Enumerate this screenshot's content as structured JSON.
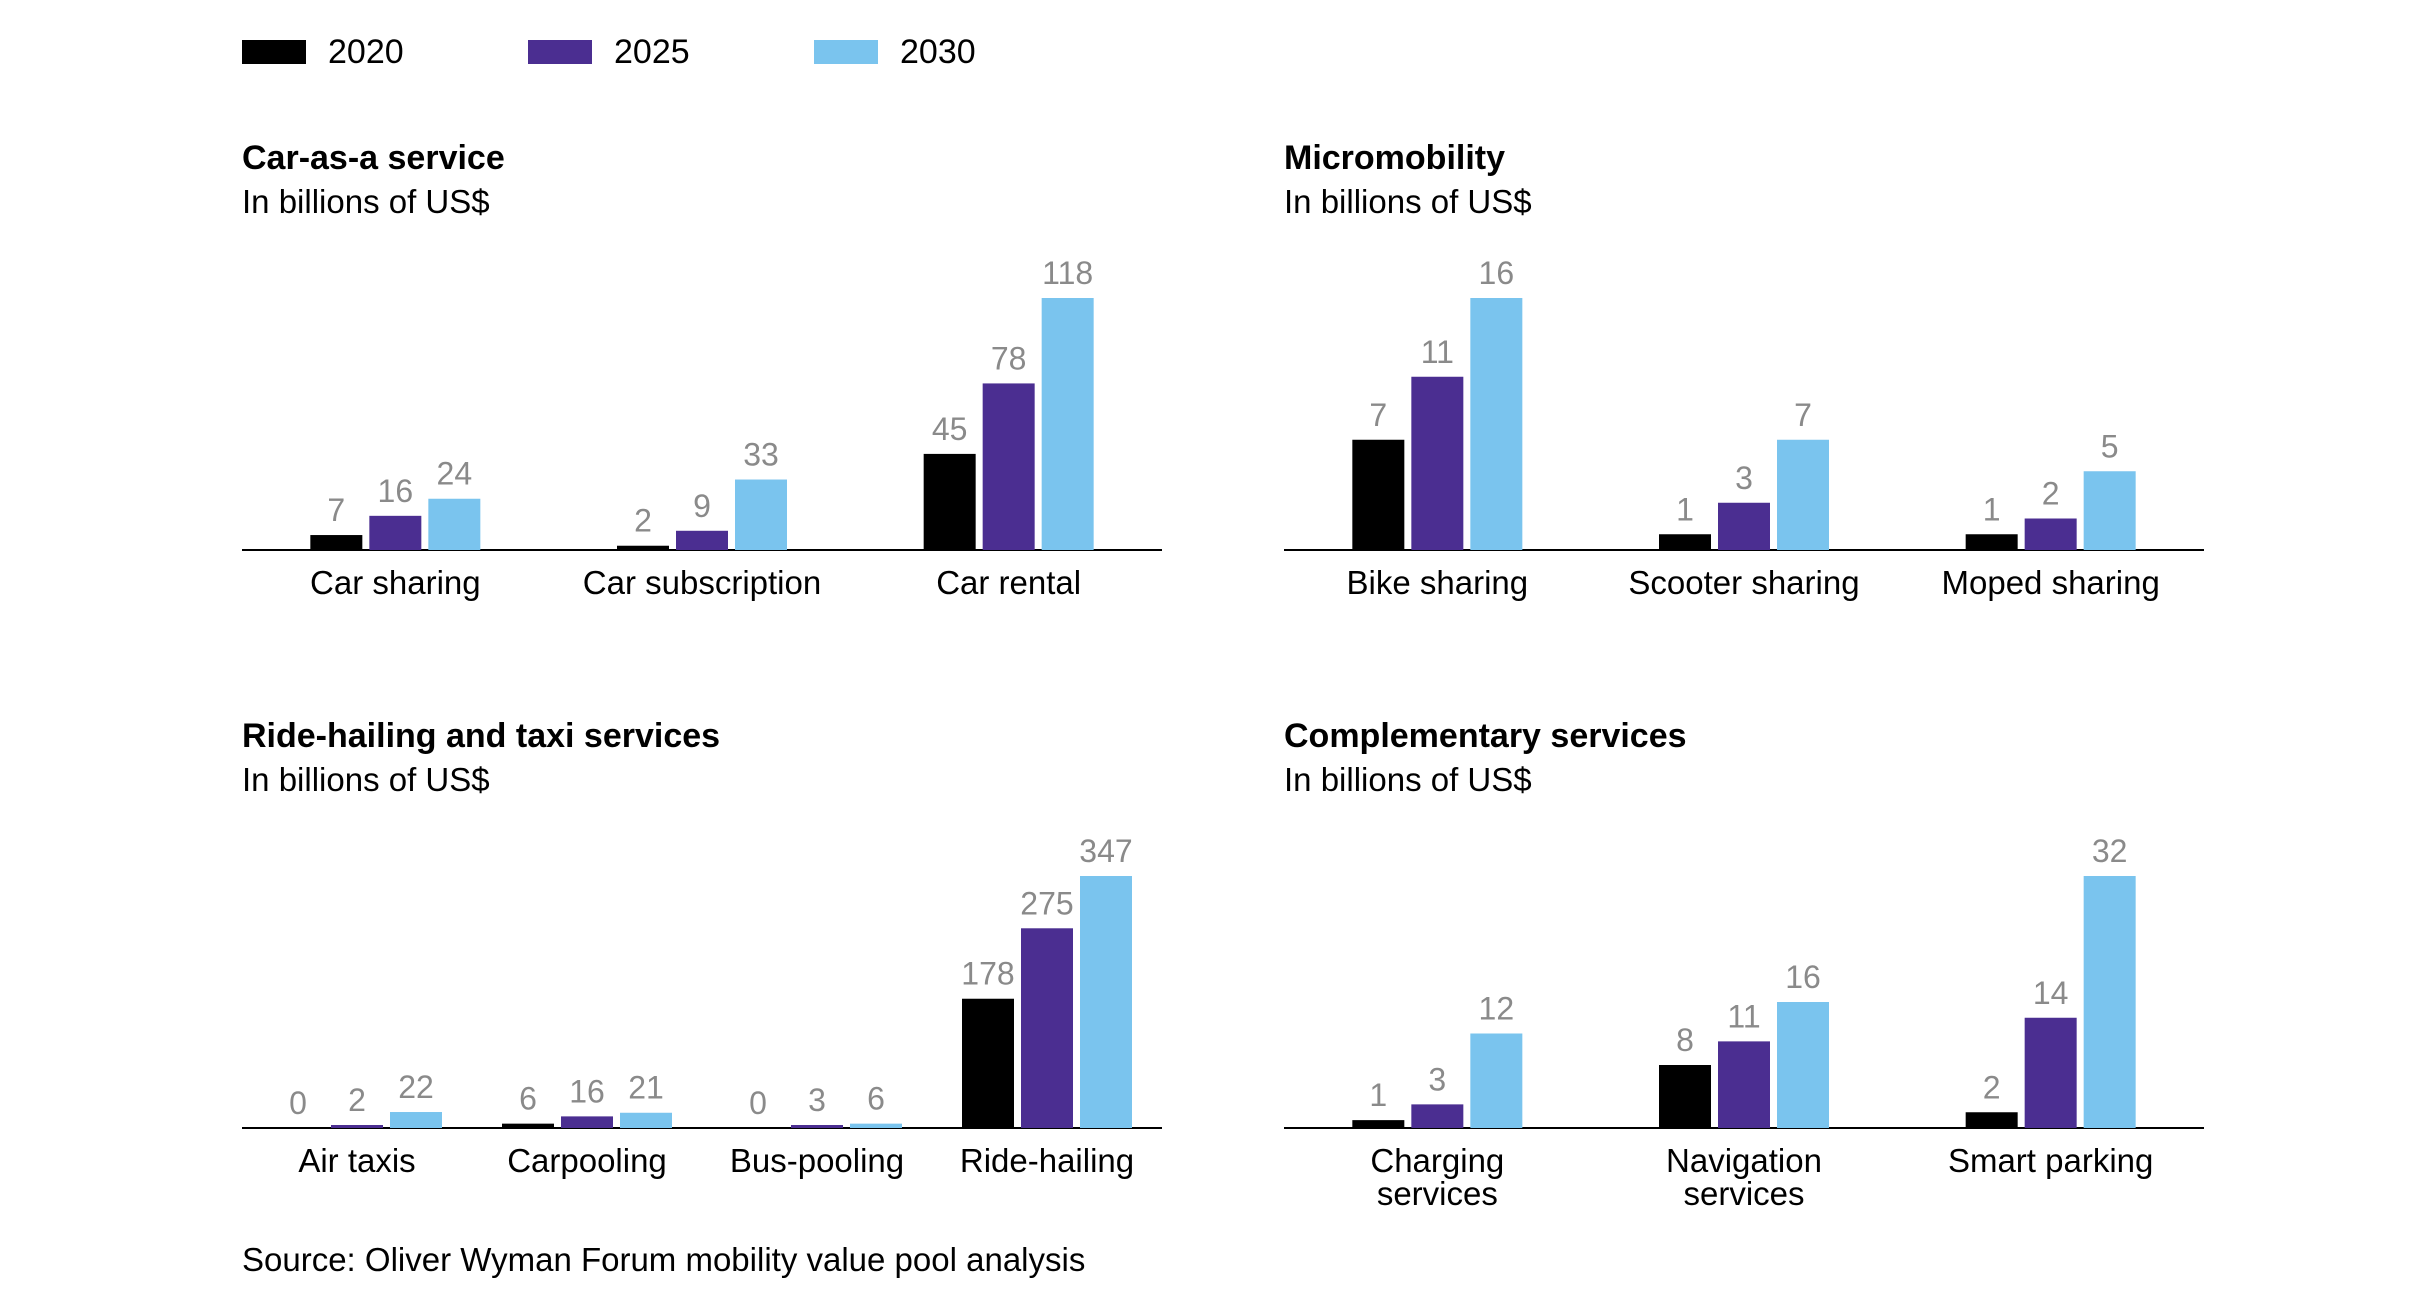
{
  "legend": [
    {
      "label": "2020",
      "color": "#000000"
    },
    {
      "label": "2025",
      "color": "#4b2e91"
    },
    {
      "label": "2030",
      "color": "#7ac4ee"
    }
  ],
  "value_label_color": "#8a8a8a",
  "chart_data": [
    {
      "type": "bar",
      "title": "Car-as-a service",
      "subtitle": "In billions of US$",
      "unit": "billions of US$",
      "categories": [
        "Car sharing",
        "Car subscription",
        "Car rental"
      ],
      "series": [
        {
          "name": "2020",
          "values": [
            7,
            2,
            45
          ]
        },
        {
          "name": "2025",
          "values": [
            16,
            9,
            78
          ]
        },
        {
          "name": "2030",
          "values": [
            24,
            33,
            118
          ]
        }
      ],
      "ylim": [
        0,
        118
      ]
    },
    {
      "type": "bar",
      "title": "Micromobility",
      "subtitle": "In billions of US$",
      "unit": "billions of US$",
      "categories": [
        "Bike sharing",
        "Scooter sharing",
        "Moped sharing"
      ],
      "series": [
        {
          "name": "2020",
          "values": [
            7,
            1,
            1
          ]
        },
        {
          "name": "2025",
          "values": [
            11,
            3,
            2
          ]
        },
        {
          "name": "2030",
          "values": [
            16,
            7,
            5
          ]
        }
      ],
      "ylim": [
        0,
        16
      ]
    },
    {
      "type": "bar",
      "title": "Ride-hailing and taxi services",
      "subtitle": "In billions of US$",
      "unit": "billions of US$",
      "categories": [
        "Air taxis",
        "Carpooling",
        "Bus-pooling",
        "Ride-hailing"
      ],
      "series": [
        {
          "name": "2020",
          "values": [
            0,
            6,
            0,
            178
          ]
        },
        {
          "name": "2025",
          "values": [
            2,
            16,
            3,
            275
          ]
        },
        {
          "name": "2030",
          "values": [
            22,
            21,
            6,
            347
          ]
        }
      ],
      "ylim": [
        0,
        347
      ]
    },
    {
      "type": "bar",
      "title": "Complementary services",
      "subtitle": "In billions of US$",
      "unit": "billions of US$",
      "categories": [
        "Charging services",
        "Navigation services",
        "Smart parking"
      ],
      "series": [
        {
          "name": "2020",
          "values": [
            1,
            8,
            2
          ]
        },
        {
          "name": "2025",
          "values": [
            3,
            11,
            14
          ]
        },
        {
          "name": "2030",
          "values": [
            12,
            16,
            32
          ]
        }
      ],
      "ylim": [
        0,
        32
      ]
    }
  ],
  "source": "Source: Oliver Wyman Forum mobility value pool analysis"
}
